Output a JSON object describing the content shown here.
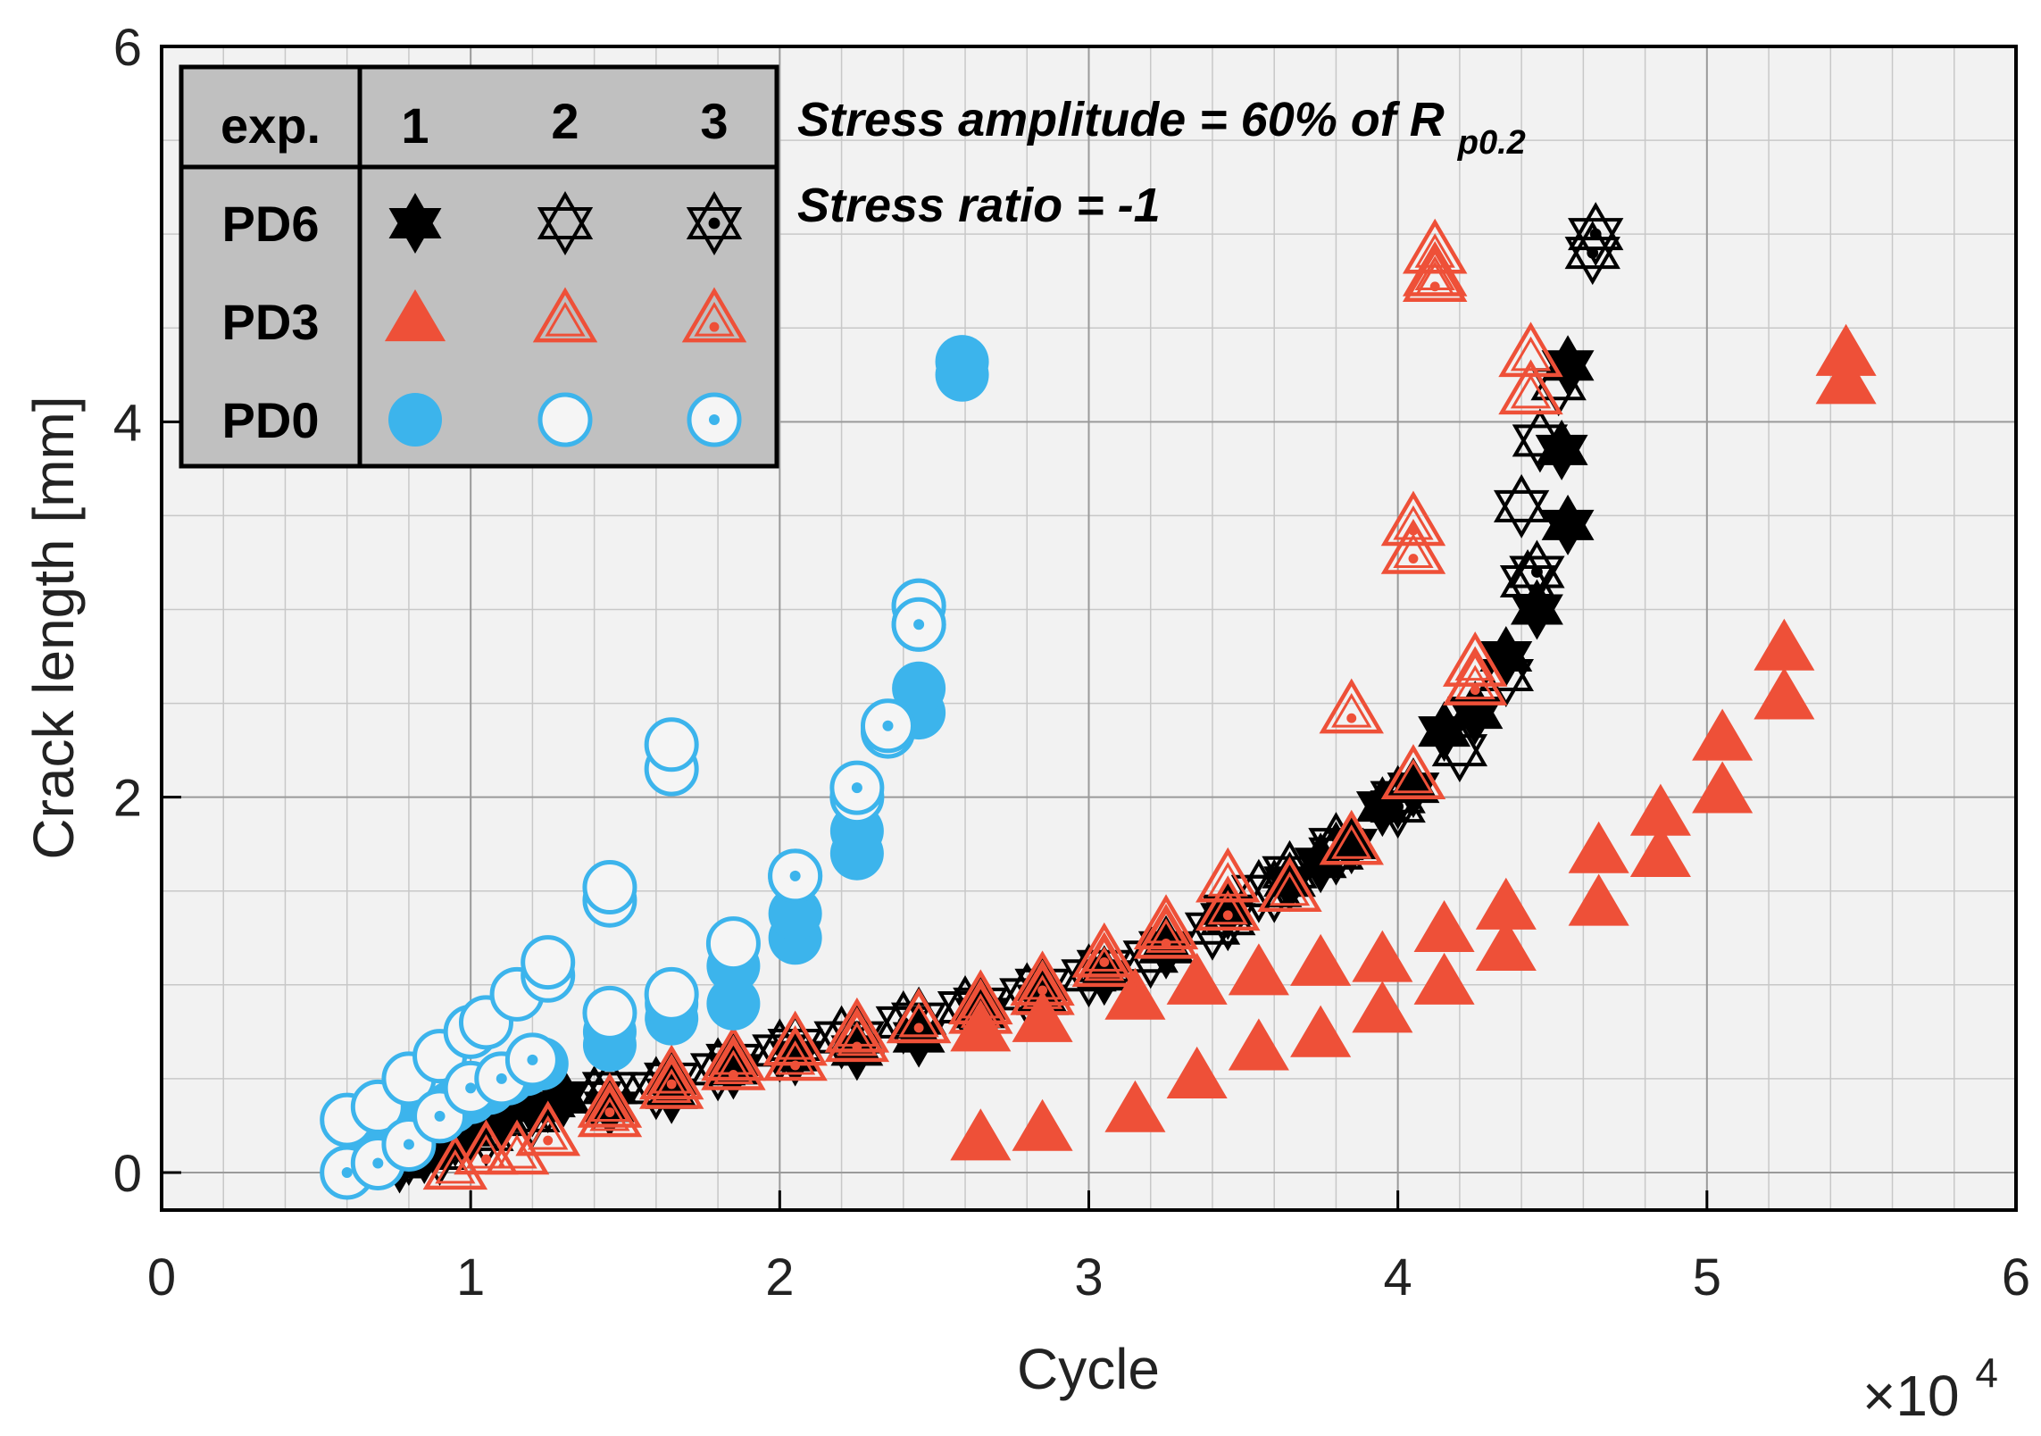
{
  "chart_data": {
    "type": "scatter",
    "xlabel": "Cycle",
    "ylabel": "Crack length [mm]",
    "x_multiplier": "×10",
    "x_multiplier_exp": "4",
    "xlim": [
      0,
      60000
    ],
    "ylim": [
      -0.2,
      6
    ],
    "xticks": [
      0,
      10000,
      20000,
      30000,
      40000,
      50000,
      60000
    ],
    "xtick_labels": [
      "0",
      "1",
      "2",
      "3",
      "4",
      "5",
      "6"
    ],
    "yticks": [
      0,
      2,
      4,
      6
    ],
    "ytick_labels": [
      "0",
      "2",
      "4",
      "6"
    ],
    "grid": true,
    "annotations": {
      "line1": "Stress amplitude = 60% of R",
      "line1_sub": "p0.2",
      "line2": "Stress ratio = -1"
    },
    "legend": {
      "placement": "top-left",
      "header": "exp.",
      "columns": [
        "1",
        "2",
        "3"
      ],
      "rows": [
        "PD6",
        "PD3",
        "PD0"
      ]
    },
    "colors": {
      "PD6": "#000000",
      "PD3": "#EE5038",
      "PD0": "#3CB4EC"
    },
    "series": [
      {
        "name": "PD6",
        "exp": "1",
        "marker": "hexagram",
        "fill": "solid",
        "points": [
          [
            7700,
            0.05
          ],
          [
            8500,
            0.1
          ],
          [
            9200,
            0.15
          ],
          [
            10000,
            0.22
          ],
          [
            11000,
            0.3
          ],
          [
            12000,
            0.35
          ],
          [
            13000,
            0.4
          ],
          [
            14500,
            0.35
          ],
          [
            16500,
            0.42
          ],
          [
            18500,
            0.55
          ],
          [
            20500,
            0.62
          ],
          [
            22500,
            0.65
          ],
          [
            24500,
            0.72
          ],
          [
            26500,
            0.85
          ],
          [
            28500,
            0.92
          ],
          [
            30500,
            1.05
          ],
          [
            32500,
            1.2
          ],
          [
            34500,
            1.4
          ],
          [
            36500,
            1.55
          ],
          [
            37500,
            1.65
          ],
          [
            38500,
            1.75
          ],
          [
            39500,
            1.95
          ],
          [
            40500,
            2.05
          ],
          [
            41500,
            2.35
          ],
          [
            42500,
            2.45
          ],
          [
            43500,
            2.75
          ],
          [
            44500,
            3.0
          ],
          [
            45500,
            3.45
          ],
          [
            45300,
            3.85
          ],
          [
            45500,
            4.3
          ]
        ]
      },
      {
        "name": "PD6",
        "exp": "2",
        "marker": "hexagram",
        "fill": "hollow",
        "points": [
          [
            8000,
            0.1
          ],
          [
            9500,
            0.2
          ],
          [
            11000,
            0.28
          ],
          [
            12500,
            0.38
          ],
          [
            14500,
            0.45
          ],
          [
            16500,
            0.5
          ],
          [
            18500,
            0.6
          ],
          [
            20500,
            0.68
          ],
          [
            22500,
            0.72
          ],
          [
            24500,
            0.82
          ],
          [
            26500,
            0.9
          ],
          [
            28500,
            1.0
          ],
          [
            30500,
            1.1
          ],
          [
            32500,
            1.2
          ],
          [
            34500,
            1.35
          ],
          [
            35500,
            1.5
          ],
          [
            36500,
            1.6
          ],
          [
            38000,
            1.75
          ],
          [
            40000,
            2.0
          ],
          [
            42000,
            2.25
          ],
          [
            43500,
            2.65
          ],
          [
            44200,
            3.15
          ],
          [
            44000,
            3.55
          ],
          [
            44600,
            3.9
          ],
          [
            45200,
            4.2
          ]
        ]
      },
      {
        "name": "PD6",
        "exp": "3",
        "marker": "hexagram",
        "fill": "dot",
        "points": [
          [
            9000,
            0.1
          ],
          [
            10500,
            0.2
          ],
          [
            12000,
            0.3
          ],
          [
            14000,
            0.4
          ],
          [
            16000,
            0.45
          ],
          [
            18000,
            0.55
          ],
          [
            20000,
            0.65
          ],
          [
            22000,
            0.72
          ],
          [
            24000,
            0.8
          ],
          [
            26000,
            0.88
          ],
          [
            28000,
            0.95
          ],
          [
            30000,
            1.05
          ],
          [
            32000,
            1.15
          ],
          [
            34000,
            1.3
          ],
          [
            36000,
            1.5
          ],
          [
            38000,
            1.7
          ],
          [
            40000,
            1.95
          ],
          [
            42500,
            2.45
          ],
          [
            44500,
            3.2
          ],
          [
            46300,
            4.9
          ],
          [
            46400,
            5.0
          ]
        ]
      },
      {
        "name": "PD3",
        "exp": "1",
        "marker": "triangle",
        "fill": "solid",
        "points": [
          [
            26500,
            0.17
          ],
          [
            28500,
            0.22
          ],
          [
            31500,
            0.32
          ],
          [
            33500,
            0.5
          ],
          [
            35500,
            0.65
          ],
          [
            37500,
            0.72
          ],
          [
            39500,
            0.85
          ],
          [
            41500,
            1.0
          ],
          [
            43500,
            1.18
          ],
          [
            46500,
            1.42
          ],
          [
            48500,
            1.68
          ],
          [
            50500,
            2.02
          ],
          [
            52500,
            2.52
          ],
          [
            54500,
            4.2
          ],
          [
            54500,
            4.35
          ],
          [
            26500,
            0.75
          ],
          [
            28500,
            0.8
          ],
          [
            31500,
            0.92
          ],
          [
            33500,
            1.0
          ],
          [
            35500,
            1.05
          ],
          [
            37500,
            1.1
          ],
          [
            39500,
            1.12
          ],
          [
            41500,
            1.28
          ],
          [
            43500,
            1.4
          ],
          [
            46500,
            1.7
          ],
          [
            48500,
            1.9
          ],
          [
            50500,
            2.3
          ],
          [
            52500,
            2.78
          ]
        ]
      },
      {
        "name": "PD3",
        "exp": "2",
        "marker": "triangle",
        "fill": "hollow",
        "points": [
          [
            9500,
            0.02
          ],
          [
            11500,
            0.1
          ],
          [
            12500,
            0.2
          ],
          [
            14500,
            0.3
          ],
          [
            16500,
            0.45
          ],
          [
            18500,
            0.6
          ],
          [
            20500,
            0.68
          ],
          [
            22500,
            0.75
          ],
          [
            24500,
            0.8
          ],
          [
            26500,
            0.85
          ],
          [
            28500,
            0.95
          ],
          [
            30500,
            1.1
          ],
          [
            32500,
            1.3
          ],
          [
            34500,
            1.55
          ],
          [
            36500,
            1.5
          ],
          [
            38500,
            1.75
          ],
          [
            40500,
            2.1
          ],
          [
            42500,
            2.7
          ],
          [
            44300,
            4.15
          ],
          [
            44300,
            4.35
          ],
          [
            41200,
            4.78
          ],
          [
            41200,
            4.9
          ]
        ]
      },
      {
        "name": "PD3",
        "exp": "3",
        "marker": "triangle",
        "fill": "dot",
        "points": [
          [
            10500,
            0.1
          ],
          [
            12500,
            0.2
          ],
          [
            14500,
            0.35
          ],
          [
            16500,
            0.5
          ],
          [
            18500,
            0.55
          ],
          [
            20500,
            0.6
          ],
          [
            22500,
            0.7
          ],
          [
            24500,
            0.8
          ],
          [
            26500,
            0.9
          ],
          [
            28500,
            1.0
          ],
          [
            30500,
            1.15
          ],
          [
            32500,
            1.25
          ],
          [
            34500,
            1.4
          ],
          [
            38500,
            2.45
          ],
          [
            40500,
            3.3
          ],
          [
            40500,
            3.45
          ],
          [
            41200,
            4.75
          ],
          [
            42500,
            2.6
          ]
        ]
      },
      {
        "name": "PD0",
        "exp": "1",
        "marker": "circle",
        "fill": "solid",
        "points": [
          [
            7000,
            0.12
          ],
          [
            7600,
            0.2
          ],
          [
            8200,
            0.25
          ],
          [
            8800,
            0.3
          ],
          [
            9400,
            0.35
          ],
          [
            10000,
            0.4
          ],
          [
            10600,
            0.45
          ],
          [
            11200,
            0.5
          ],
          [
            11800,
            0.55
          ],
          [
            12300,
            0.58
          ],
          [
            14500,
            0.68
          ],
          [
            14500,
            0.75
          ],
          [
            16500,
            0.82
          ],
          [
            16500,
            0.9
          ],
          [
            18500,
            0.9
          ],
          [
            18500,
            1.1
          ],
          [
            20500,
            1.25
          ],
          [
            20500,
            1.38
          ],
          [
            22500,
            1.7
          ],
          [
            22500,
            1.82
          ],
          [
            24500,
            2.45
          ],
          [
            24500,
            2.58
          ],
          [
            25900,
            4.25
          ],
          [
            25900,
            4.32
          ]
        ]
      },
      {
        "name": "PD0",
        "exp": "2",
        "marker": "circle",
        "fill": "hollow",
        "points": [
          [
            6000,
            0.28
          ],
          [
            7000,
            0.35
          ],
          [
            8000,
            0.5
          ],
          [
            9000,
            0.62
          ],
          [
            10000,
            0.75
          ],
          [
            10500,
            0.8
          ],
          [
            11500,
            0.95
          ],
          [
            12500,
            1.05
          ],
          [
            12500,
            1.12
          ],
          [
            14500,
            0.85
          ],
          [
            14500,
            1.45
          ],
          [
            14500,
            1.52
          ],
          [
            16500,
            0.95
          ],
          [
            16500,
            2.15
          ],
          [
            16500,
            2.28
          ],
          [
            18500,
            1.22
          ],
          [
            20500,
            1.58
          ],
          [
            22500,
            2.0
          ],
          [
            23500,
            2.35
          ],
          [
            24500,
            2.92
          ],
          [
            24500,
            3.02
          ]
        ]
      },
      {
        "name": "PD0",
        "exp": "3",
        "marker": "circle",
        "fill": "dot",
        "points": [
          [
            6000,
            0.0
          ],
          [
            7000,
            0.05
          ],
          [
            8000,
            0.15
          ],
          [
            9000,
            0.3
          ],
          [
            10000,
            0.45
          ],
          [
            11000,
            0.5
          ],
          [
            12000,
            0.6
          ],
          [
            20500,
            1.58
          ],
          [
            22500,
            2.05
          ],
          [
            23500,
            2.38
          ],
          [
            24500,
            3.02
          ],
          [
            24500,
            2.92
          ]
        ]
      }
    ]
  }
}
